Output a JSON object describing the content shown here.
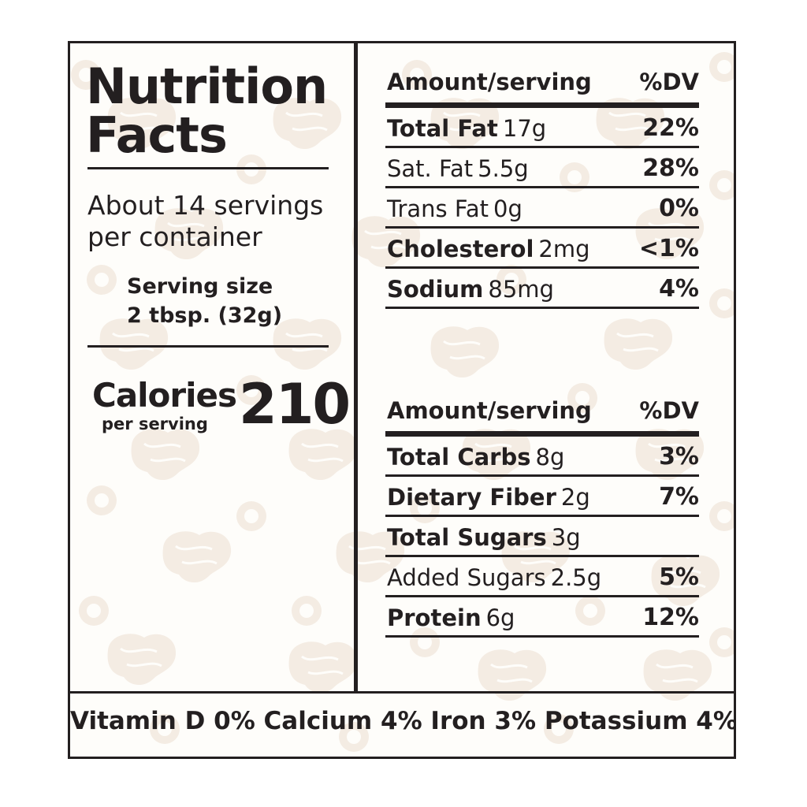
{
  "title": {
    "line1": "Nutrition",
    "line2": "Facts"
  },
  "servings": {
    "line1": "About 14 servings",
    "line2": "per container"
  },
  "serving_size": {
    "label": "Serving size",
    "value": "2 tbsp. (32g)"
  },
  "calories": {
    "label": "Calories",
    "sub": "per serving",
    "value": "210"
  },
  "table1": {
    "header": {
      "amount": "Amount/serving",
      "dv": "%DV"
    },
    "rows": [
      {
        "name": "Total Fat",
        "amount": "17g",
        "dv": "22%"
      },
      {
        "name": "Sat. Fat",
        "amount": "5.5g",
        "dv": "28%"
      },
      {
        "name": "Trans Fat",
        "amount": "0g",
        "dv": "0%"
      },
      {
        "name": "Cholesterol",
        "amount": "2mg",
        "dv": "<1%"
      },
      {
        "name": "Sodium",
        "amount": "85mg",
        "dv": "4%"
      }
    ]
  },
  "table2": {
    "header": {
      "amount": "Amount/serving",
      "dv": "%DV"
    },
    "rows": [
      {
        "name": "Total Carbs",
        "amount": "8g",
        "dv": "3%"
      },
      {
        "name": "Dietary Fiber",
        "amount": "2g",
        "dv": "7%"
      },
      {
        "name": "Total Sugars",
        "amount": "3g",
        "dv": ""
      },
      {
        "name": "Added Sugars",
        "amount": "2.5g",
        "dv": "5%"
      },
      {
        "name": "Protein",
        "amount": "6g",
        "dv": "12%"
      }
    ]
  },
  "footer": "Vitamin D 0% Calcium 4% Iron 3% Potassium 4%",
  "colors": {
    "ink": "#231f20",
    "pattern": "#f4ece3"
  }
}
